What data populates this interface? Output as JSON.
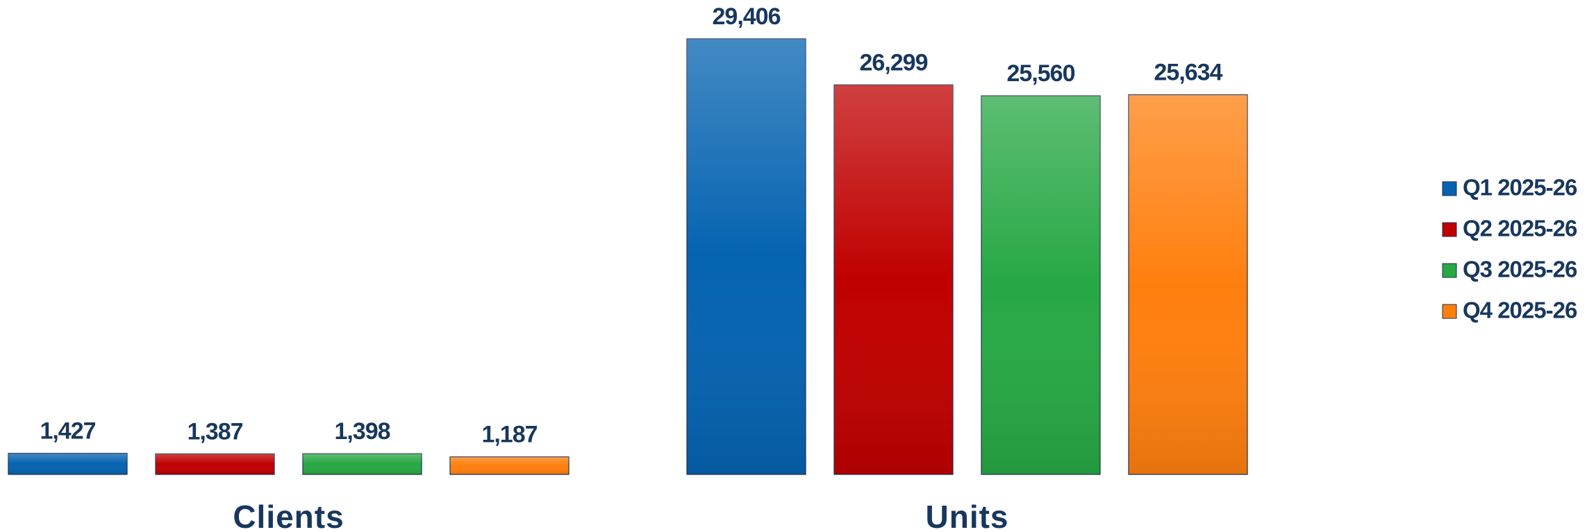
{
  "chart_data": {
    "type": "bar",
    "categories": [
      "Clients",
      "Units"
    ],
    "series": [
      {
        "name": "Q1 2025-26",
        "color": "#0563b0",
        "values": [
          1427,
          29406
        ],
        "value_labels": [
          "1,427",
          "29,406"
        ]
      },
      {
        "name": "Q2 2025-26",
        "color": "#c00000",
        "values": [
          1387,
          26299
        ],
        "value_labels": [
          "1,387",
          "26,299"
        ]
      },
      {
        "name": "Q3 2025-26",
        "color": "#27a844",
        "values": [
          1398,
          25560
        ],
        "value_labels": [
          "1,398",
          "25,560"
        ]
      },
      {
        "name": "Q4 2025-26",
        "color": "#ff7f0e",
        "values": [
          1187,
          25634
        ],
        "value_labels": [
          "1,187",
          "25,634"
        ]
      }
    ],
    "legend": "right"
  }
}
